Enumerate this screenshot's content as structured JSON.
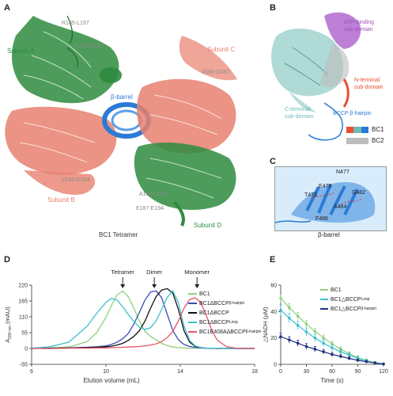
{
  "colors": {
    "green": "#2e8b3e",
    "salmon": "#e8806e",
    "blue": "#2b7bd6",
    "teal": "#6dbcb5",
    "purple": "#a04bc4",
    "orange_red": "#e8502f",
    "gray": "#9a9a9a"
  },
  "panel_a": {
    "letter": "A",
    "labels": {
      "subunit_a": "Subunit A",
      "subunit_b": "Subunit B",
      "subunit_c": "Subunit C",
      "subunit_d": "Subunit D",
      "r185_l197": "R185-L197",
      "k158_r169": "K158-R169",
      "v160_g167": "V160-G167",
      "v160_g164": "V160-G164",
      "a159_l168": "A159-L168",
      "e187_e194": "E187-E194",
      "barrel": "β-barrel",
      "caption": "BC1 Tetramer"
    }
  },
  "panel_b": {
    "letter": "B",
    "labels": {
      "atp_line1": "ATP-binding",
      "atp_line2": "sub-domian",
      "nterm_line1": "N-terminal",
      "nterm_line2": "sub-domain",
      "cterm_line1": "C-terminal",
      "cterm_line2": "sub-domian",
      "bccp": "BCCP β-hairpin"
    },
    "legend": [
      {
        "label": "BC1",
        "colors": [
          "#e8502f",
          "#6dbcb5",
          "#2b7bd6"
        ]
      },
      {
        "label": "BC2",
        "colors": [
          "#bdbdbd"
        ]
      }
    ]
  },
  "panel_c": {
    "letter": "C",
    "labels": {
      "n477": "N477",
      "e475": "E475",
      "t473": "T473",
      "g482": "G482",
      "a484": "A484",
      "f486": "F486",
      "caption": "β-barrel"
    }
  },
  "panel_d": {
    "letter": "D",
    "annotations": [
      "Tetramer",
      "Dimer",
      "Monomer"
    ],
    "legend": [
      {
        "label": "BC1",
        "color": "#8fd17a"
      },
      {
        "label": "BC1ΔBCCP",
        "sup": "β-hairpin",
        "color": "#3b4cb5"
      },
      {
        "label": "BC1ΔBCCP",
        "sup": "",
        "color": "#111111"
      },
      {
        "label": "BC1ΔBCCP",
        "sup": "Loop",
        "color": "#3bbfd0"
      },
      {
        "label": "BC1E408AΔBCCP",
        "sup": "β-hairpin",
        "color": "#e8556a"
      }
    ]
  },
  "panel_e": {
    "letter": "E",
    "legend": [
      {
        "label": "BC1",
        "sup": "",
        "color": "#8fd17a"
      },
      {
        "label": "BC1△BCCP",
        "sup": "Loop",
        "color": "#3bbfd0"
      },
      {
        "label": "BC1△BCCP",
        "sup": "β-hairpin",
        "color": "#1f2f80"
      }
    ]
  },
  "chart_data": [
    {
      "type": "line",
      "panel": "D",
      "xlabel": "Elution volume (mL)",
      "ylabel": "A",
      "ylabel_sub": "280 nm",
      "ylabel_unit": "(mAU)",
      "xlim": [
        6,
        18
      ],
      "ylim": [
        -55,
        220
      ],
      "xticks": [
        6,
        10,
        14,
        18
      ],
      "yticks": [
        -55,
        0,
        55,
        110,
        165,
        220
      ],
      "x": [
        6,
        7,
        8,
        9,
        9.5,
        10,
        10.3,
        10.6,
        10.9,
        11.2,
        11.5,
        11.8,
        12.1,
        12.4,
        12.7,
        13.0,
        13.3,
        13.6,
        13.9,
        14.2,
        14.5,
        14.8,
        15.1,
        15.4,
        15.7,
        16.0,
        16.5,
        17,
        18
      ],
      "series": [
        {
          "name": "BC1",
          "color": "#8fd17a",
          "values": [
            1,
            2,
            5,
            24,
            55,
            108,
            150,
            186,
            200,
            180,
            140,
            95,
            60,
            42,
            30,
            18,
            10,
            5,
            3,
            2,
            1,
            1,
            1,
            1,
            1,
            1,
            1,
            1,
            1
          ]
        },
        {
          "name": "BC1ΔBCCPβ-hairpin",
          "color": "#3b4cb5",
          "values": [
            0,
            1,
            2,
            4,
            6,
            9,
            14,
            22,
            34,
            52,
            85,
            125,
            168,
            196,
            200,
            176,
            118,
            62,
            30,
            14,
            7,
            4,
            2,
            1,
            1,
            1,
            0,
            0,
            0
          ]
        },
        {
          "name": "BC1ΔBCCP",
          "color": "#111111",
          "values": [
            0,
            1,
            2,
            3,
            4,
            6,
            8,
            12,
            18,
            28,
            42,
            62,
            95,
            140,
            180,
            203,
            208,
            192,
            135,
            62,
            22,
            8,
            3,
            1,
            1,
            0,
            0,
            0,
            0
          ]
        },
        {
          "name": "BC1ΔBCCPLoop",
          "color": "#3bbfd0",
          "values": [
            1,
            6,
            22,
            78,
            122,
            160,
            174,
            168,
            145,
            118,
            94,
            74,
            66,
            72,
            96,
            136,
            178,
            200,
            158,
            78,
            28,
            9,
            3,
            1,
            1,
            1,
            0,
            0,
            0
          ]
        },
        {
          "name": "BC1E408AΔBCCPβ-hairpin",
          "color": "#e8556a",
          "values": [
            0,
            0,
            1,
            1,
            2,
            2,
            3,
            3,
            4,
            5,
            6,
            7,
            9,
            12,
            16,
            24,
            38,
            60,
            96,
            140,
            170,
            176,
            160,
            115,
            62,
            28,
            6,
            1,
            0
          ]
        }
      ]
    },
    {
      "type": "line",
      "panel": "E",
      "xlabel": "Time (s)",
      "ylabel": "△NADH (μM)",
      "xlim": [
        0,
        120
      ],
      "ylim": [
        0,
        60
      ],
      "xticks": [
        0,
        30,
        60,
        90,
        120
      ],
      "yticks": [
        0,
        20,
        40,
        60
      ],
      "x": [
        0,
        10,
        20,
        30,
        40,
        50,
        60,
        70,
        80,
        90,
        100,
        110,
        120
      ],
      "series": [
        {
          "name": "BC1",
          "color": "#8fd17a",
          "values": [
            50,
            43,
            36.5,
            30.5,
            25,
            20,
            15.5,
            11.5,
            8,
            5,
            3,
            1.2,
            0.3
          ],
          "errors": [
            3,
            3,
            2.8,
            2.6,
            2.4,
            2.2,
            2,
            1.8,
            1.6,
            1.4,
            1.2,
            1,
            0.8
          ]
        },
        {
          "name": "BC1△BCCPLoop",
          "color": "#3bbfd0",
          "values": [
            41,
            35,
            29.5,
            24.5,
            20,
            16,
            12.5,
            9.5,
            7,
            4.5,
            2.5,
            1,
            0.2
          ],
          "errors": [
            4,
            3.5,
            3.2,
            3,
            2.8,
            2.5,
            2.2,
            2,
            1.8,
            1.5,
            1.2,
            1,
            0.8
          ]
        },
        {
          "name": "BC1△BCCPβ-hairpin",
          "color": "#1f2f80",
          "values": [
            21,
            18.5,
            16,
            13.5,
            11.5,
            9.5,
            7.5,
            6,
            4.5,
            3,
            2,
            1,
            0.3
          ],
          "errors": [
            2.5,
            2.5,
            2.3,
            2.2,
            2,
            1.8,
            1.6,
            1.4,
            1.2,
            1,
            0.9,
            0.8,
            0.6
          ]
        }
      ]
    }
  ]
}
